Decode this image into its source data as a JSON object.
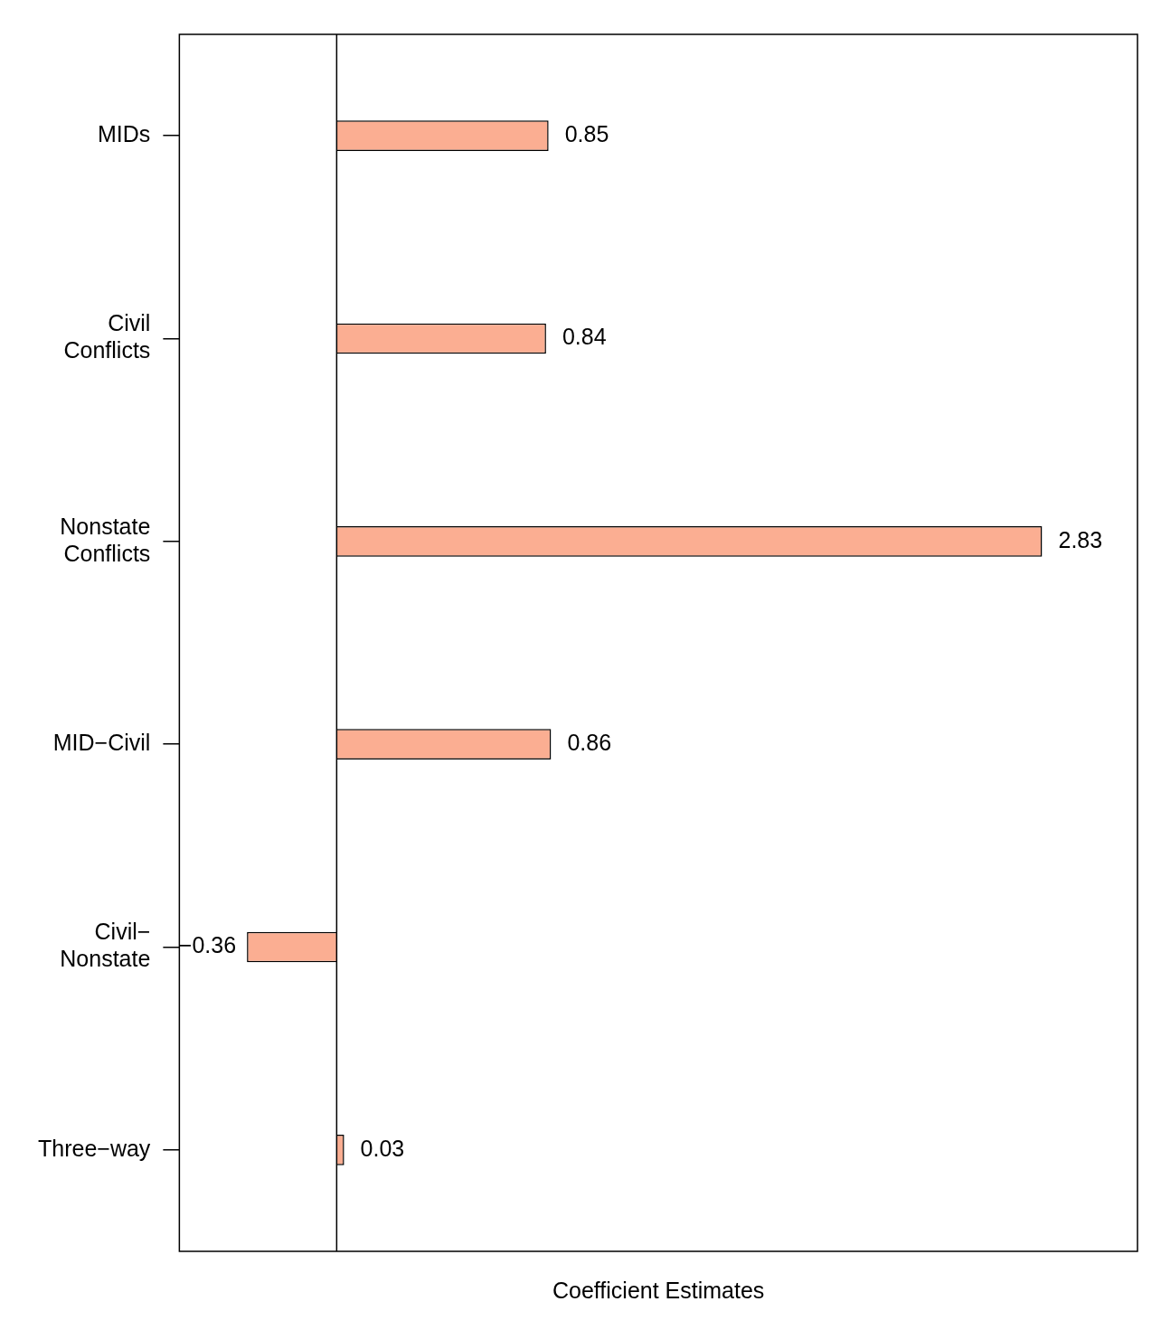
{
  "chart_data": {
    "type": "bar",
    "orientation": "horizontal",
    "xlabel": "Coefficient Estimates",
    "categories": [
      "MIDs",
      "Civil\nConflicts",
      "Nonstate\nConflicts",
      "MID−Civil",
      "Civil−\nNonstate",
      "Three−way"
    ],
    "values": [
      0.85,
      0.84,
      2.83,
      0.86,
      -0.36,
      0.03
    ],
    "value_labels": [
      "0.85",
      "0.84",
      "2.83",
      "0.86",
      "−0.36",
      "0.03"
    ],
    "color": "#fbae92",
    "grid": false,
    "legend": false,
    "tick_labels": "y",
    "ref_lines": [
      {
        "axis": "x",
        "value": 0,
        "color": "#000000"
      }
    ]
  }
}
